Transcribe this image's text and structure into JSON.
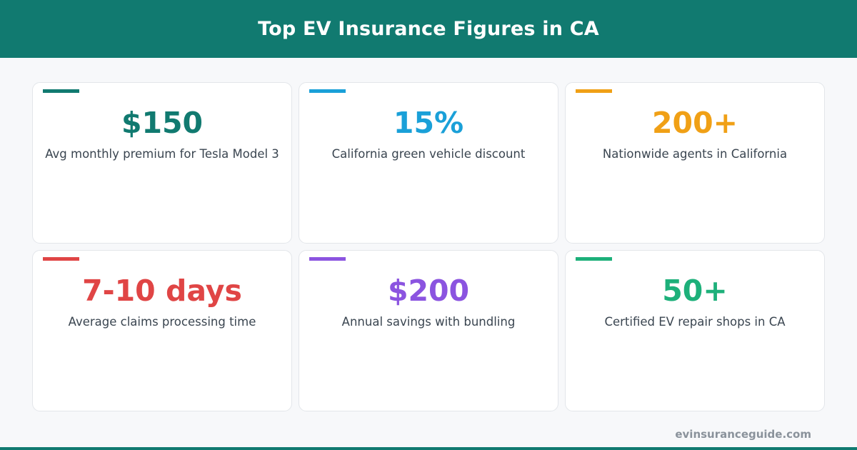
{
  "header": {
    "title": "Top EV Insurance Figures in CA"
  },
  "cards": [
    {
      "value": "$150",
      "label": "Avg monthly premium for Tesla Model 3",
      "color": "#117a70"
    },
    {
      "value": "15%",
      "label": "California green vehicle discount",
      "color": "#1aa0d8"
    },
    {
      "value": "200+",
      "label": "Nationwide agents in California",
      "color": "#f0a016"
    },
    {
      "value": "7-10 days",
      "label": "Average claims processing time",
      "color": "#e04545"
    },
    {
      "value": "$200",
      "label": "Annual savings with bundling",
      "color": "#8b54e0"
    },
    {
      "value": "50+",
      "label": "Certified EV repair shops in CA",
      "color": "#1db07a"
    }
  ],
  "footer": {
    "site": "evinsuranceguide.com"
  }
}
